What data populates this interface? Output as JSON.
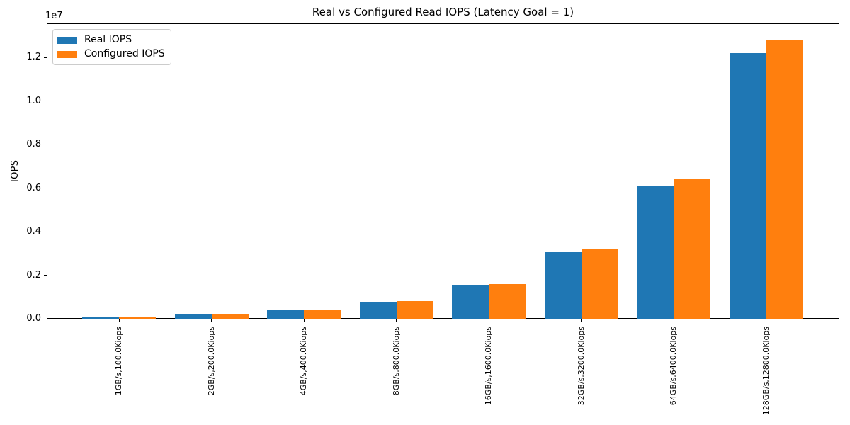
{
  "chart_data": {
    "type": "bar",
    "title": "Real vs Configured Read IOPS (Latency Goal = 1)",
    "xlabel": "",
    "ylabel": "IOPS",
    "offset_text": "1e7",
    "categories": [
      "1GB/s,100.0Kiops",
      "2GB/s,200.0Kiops",
      "4GB/s,400.0Kiops",
      "8GB/s,800.0Kiops",
      "16GB/s,1600.0Kiops",
      "32GB/s,3200.0Kiops",
      "64GB/s,6400.0Kiops",
      "128GB/s,12800.0Kiops"
    ],
    "series": [
      {
        "name": "Real IOPS",
        "color": "#1f77b4",
        "values": [
          95000,
          190000,
          380000,
          765000,
          1540000,
          3070000,
          6110000,
          12200000
        ]
      },
      {
        "name": "Configured IOPS",
        "color": "#ff7f0e",
        "values": [
          100000,
          200000,
          400000,
          800000,
          1600000,
          3200000,
          6400000,
          12800000
        ]
      }
    ],
    "ylim": [
      0,
      13570000
    ],
    "ytick_values": [
      0,
      2000000,
      4000000,
      6000000,
      8000000,
      10000000,
      12000000
    ],
    "ytick_labels": [
      "0.0",
      "0.2",
      "0.4",
      "0.6",
      "0.8",
      "1.0",
      "1.2"
    ],
    "grid": false,
    "legend_position": "upper left"
  }
}
